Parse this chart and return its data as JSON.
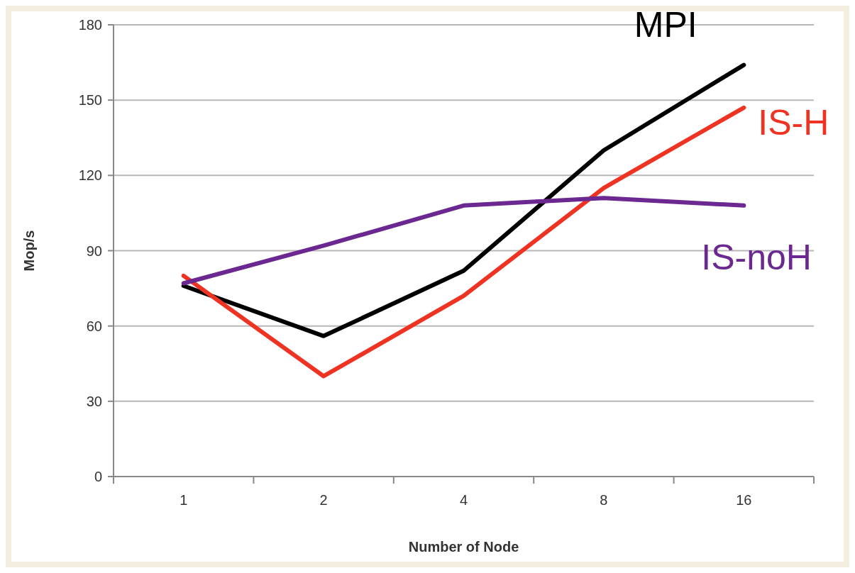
{
  "chart_data": {
    "type": "line",
    "xlabel": "Number of Node",
    "ylabel": "Mop/s",
    "categories": [
      "1",
      "2",
      "4",
      "8",
      "16"
    ],
    "ylim": [
      0,
      180
    ],
    "yticks": [
      0,
      30,
      60,
      90,
      120,
      150,
      180
    ],
    "grid": "y",
    "legend": false,
    "marker": "none",
    "line_style": "solid",
    "series": [
      {
        "name": "MPI",
        "color": "#000000",
        "values": [
          76,
          56,
          82,
          130,
          164
        ]
      },
      {
        "name": "IS-H",
        "color": "#ee3322",
        "values": [
          80,
          40,
          72,
          115,
          147
        ]
      },
      {
        "name": "IS-noH",
        "color": "#6a2890",
        "values": [
          77,
          92,
          108,
          111,
          108
        ]
      }
    ]
  }
}
